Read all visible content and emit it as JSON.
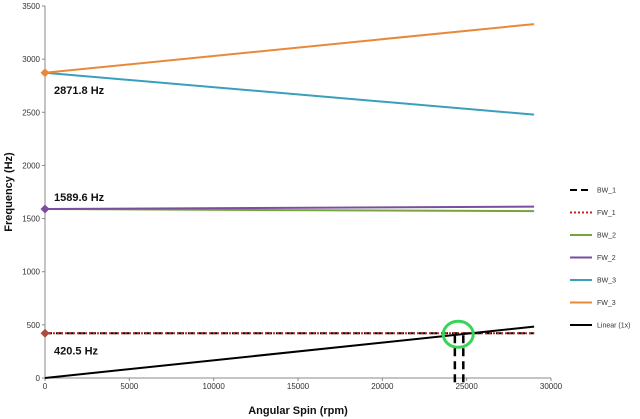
{
  "chart_data": {
    "type": "line",
    "xlabel": "Angular Spin (rpm)",
    "ylabel": "Frequency (Hz)",
    "xlim": [
      0,
      30000
    ],
    "ylim": [
      0,
      3500
    ],
    "x_ticks": [
      "0",
      "5000",
      "10000",
      "15000",
      "20000",
      "25000",
      "30000"
    ],
    "y_ticks": [
      "0",
      "500",
      "1000",
      "1500",
      "2000",
      "2500",
      "3000",
      "3500"
    ],
    "grid": false,
    "legend_position": "right",
    "series": [
      {
        "name": "BW_1",
        "color": "#000000",
        "dash": "long-dash",
        "x": [
          0,
          29000
        ],
        "y": [
          420.5,
          420.5
        ]
      },
      {
        "name": "FW_1",
        "color": "#cc2222",
        "dash": "dotted",
        "x": [
          0,
          29000
        ],
        "y": [
          420.5,
          420.5
        ]
      },
      {
        "name": "BW_2",
        "color": "#77a33b",
        "dash": "solid",
        "x": [
          0,
          29000
        ],
        "y": [
          1589.6,
          1570
        ]
      },
      {
        "name": "FW_2",
        "color": "#7a4fa0",
        "dash": "solid",
        "x": [
          0,
          29000
        ],
        "y": [
          1589.6,
          1612
        ]
      },
      {
        "name": "BW_3",
        "color": "#3a9fba",
        "dash": "solid",
        "x": [
          0,
          29000
        ],
        "y": [
          2871.8,
          2478
        ]
      },
      {
        "name": "FW_3",
        "color": "#e8893a",
        "dash": "solid",
        "x": [
          0,
          29000
        ],
        "y": [
          2871.8,
          3330
        ]
      },
      {
        "name": "Linear (1x)",
        "color": "#000000",
        "dash": "solid",
        "x": [
          0,
          29000
        ],
        "y": [
          0,
          483
        ]
      }
    ],
    "annotations": [
      {
        "text": "2871.8 Hz",
        "x": 0,
        "y": 2871.8,
        "marker_color": "#e8893a"
      },
      {
        "text": "1589.6 Hz",
        "x": 0,
        "y": 1589.6,
        "marker_color": "#7a4fa0"
      },
      {
        "text": "420.5 Hz",
        "x": 0,
        "y": 420.5,
        "marker_color": "#b04a3c"
      }
    ],
    "highlight": {
      "x": 24500,
      "y": 420.5,
      "color": "#3ad35a",
      "markers_x": [
        24300,
        24800
      ]
    }
  }
}
